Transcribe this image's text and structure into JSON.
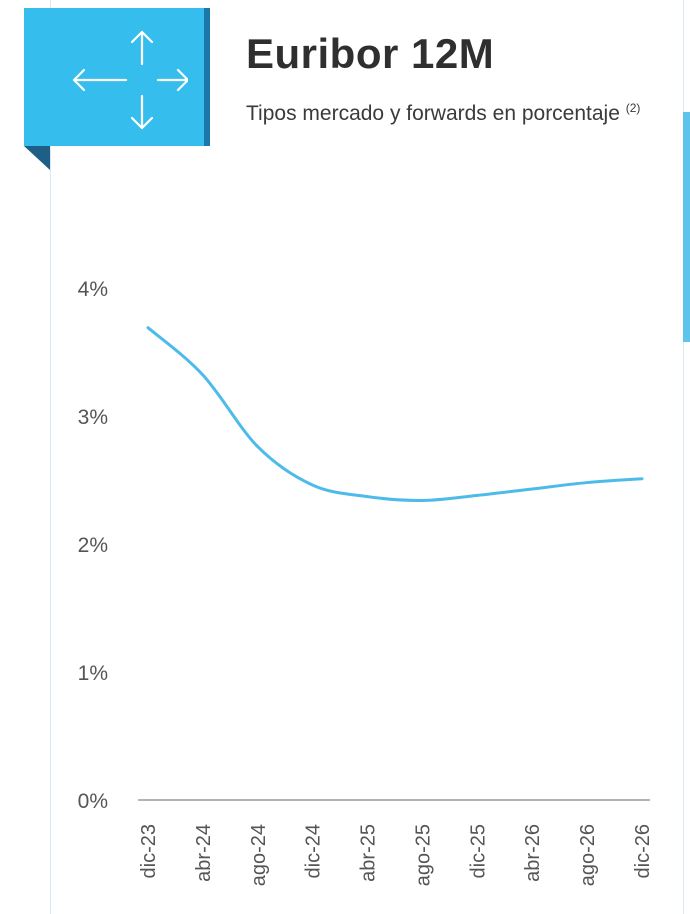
{
  "header": {
    "icon": "move-arrows-icon",
    "title": "Euribor 12M",
    "subtitle": "Tipos mercado y forwards en porcentaje",
    "footnote": "(2)"
  },
  "colors": {
    "accent": "#35bdee",
    "accent_dark": "#1a79a8",
    "line": "#4dbbe9",
    "axis": "#9a9a9a",
    "text": "#555555"
  },
  "chart_data": {
    "type": "line",
    "title": "Euribor 12M",
    "subtitle": "Tipos mercado y forwards en porcentaje",
    "xlabel": "",
    "ylabel": "",
    "ylim": [
      0,
      4
    ],
    "yticks": [
      "0%",
      "1%",
      "2%",
      "3%",
      "4%"
    ],
    "categories": [
      "dic-23",
      "abr-24",
      "ago-24",
      "dic-24",
      "abr-25",
      "ago-25",
      "dic-25",
      "abr-26",
      "ago-26",
      "dic-26"
    ],
    "grid": false,
    "legend": "none",
    "series": [
      {
        "values": [
          3.69,
          3.32,
          2.76,
          2.46,
          2.37,
          2.34,
          2.38,
          2.43,
          2.48,
          2.51
        ]
      }
    ]
  }
}
